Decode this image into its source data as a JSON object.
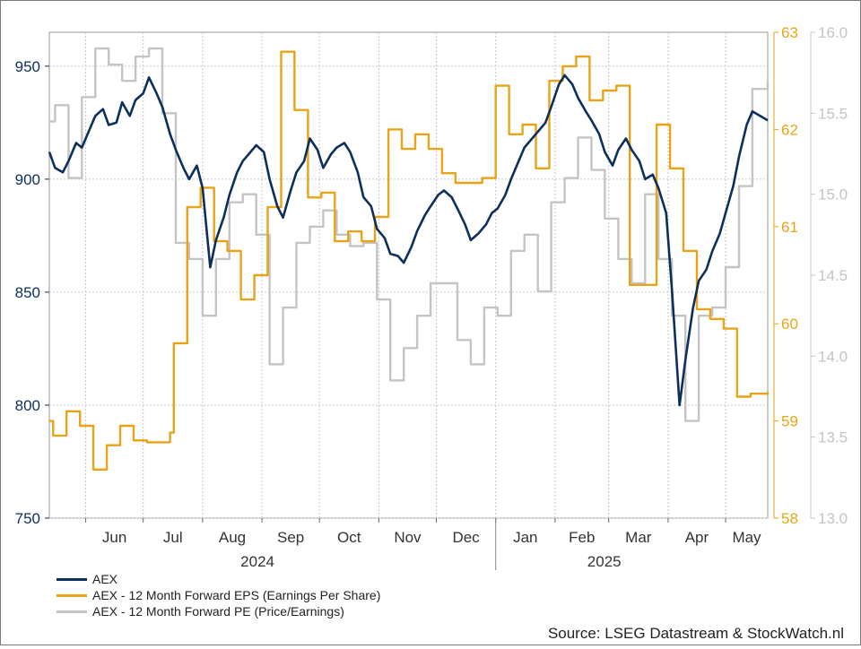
{
  "chart_data": {
    "type": "line",
    "title": "",
    "source": "Source: LSEG Datastream & StockWatch.nl",
    "x_range": [
      "2024-05-13",
      "2025-05-23"
    ],
    "month_ticks": [
      {
        "label": "Jun",
        "date": "2024-06-01"
      },
      {
        "label": "Jul",
        "date": "2024-07-01"
      },
      {
        "label": "Aug",
        "date": "2024-08-01"
      },
      {
        "label": "Sep",
        "date": "2024-09-01"
      },
      {
        "label": "Oct",
        "date": "2024-10-01"
      },
      {
        "label": "Nov",
        "date": "2024-11-01"
      },
      {
        "label": "Dec",
        "date": "2024-12-01"
      },
      {
        "label": "Jan",
        "date": "2025-01-01"
      },
      {
        "label": "Feb",
        "date": "2025-02-01"
      },
      {
        "label": "Mar",
        "date": "2025-03-01"
      },
      {
        "label": "Apr",
        "date": "2025-04-01"
      },
      {
        "label": "May",
        "date": "2025-05-01"
      }
    ],
    "year_labels": [
      {
        "label": "2024",
        "date": "2024-09-01"
      },
      {
        "label": "2025",
        "date": "2025-03-01"
      }
    ],
    "axes": {
      "left": {
        "min": 750,
        "max": 965,
        "ticks": [
          750,
          800,
          850,
          900,
          950
        ],
        "color": "#0d2f5c"
      },
      "right1": {
        "min": 58,
        "max": 63,
        "ticks": [
          58,
          59,
          60,
          61,
          62,
          63
        ],
        "color": "#e8a317"
      },
      "right2": {
        "min": 13.0,
        "max": 16.0,
        "ticks": [
          "13.0",
          "13.5",
          "14.0",
          "14.5",
          "15.0",
          "15.5",
          "16.0"
        ],
        "color": "#c4c4c4"
      }
    },
    "grid": true,
    "legend_position": "bottom-left",
    "series": [
      {
        "name": "AEX",
        "axis": "left",
        "color": "#0d2f5c",
        "points": [
          [
            "2024-05-13",
            912
          ],
          [
            "2024-05-16",
            905
          ],
          [
            "2024-05-20",
            903
          ],
          [
            "2024-05-23",
            908
          ],
          [
            "2024-05-27",
            916
          ],
          [
            "2024-05-30",
            914
          ],
          [
            "2024-06-03",
            922
          ],
          [
            "2024-06-06",
            928
          ],
          [
            "2024-06-10",
            931
          ],
          [
            "2024-06-13",
            924
          ],
          [
            "2024-06-17",
            925
          ],
          [
            "2024-06-20",
            934
          ],
          [
            "2024-06-24",
            928
          ],
          [
            "2024-06-27",
            935
          ],
          [
            "2024-07-01",
            938
          ],
          [
            "2024-07-04",
            945
          ],
          [
            "2024-07-08",
            938
          ],
          [
            "2024-07-11",
            932
          ],
          [
            "2024-07-15",
            920
          ],
          [
            "2024-07-18",
            913
          ],
          [
            "2024-07-22",
            905
          ],
          [
            "2024-07-25",
            900
          ],
          [
            "2024-07-29",
            906
          ],
          [
            "2024-08-01",
            896
          ],
          [
            "2024-08-05",
            861
          ],
          [
            "2024-08-08",
            873
          ],
          [
            "2024-08-12",
            883
          ],
          [
            "2024-08-15",
            893
          ],
          [
            "2024-08-19",
            903
          ],
          [
            "2024-08-22",
            908
          ],
          [
            "2024-08-26",
            912
          ],
          [
            "2024-08-29",
            915
          ],
          [
            "2024-09-02",
            912
          ],
          [
            "2024-09-05",
            900
          ],
          [
            "2024-09-09",
            888
          ],
          [
            "2024-09-12",
            883
          ],
          [
            "2024-09-16",
            895
          ],
          [
            "2024-09-19",
            903
          ],
          [
            "2024-09-23",
            908
          ],
          [
            "2024-09-26",
            918
          ],
          [
            "2024-09-30",
            913
          ],
          [
            "2024-10-03",
            905
          ],
          [
            "2024-10-07",
            911
          ],
          [
            "2024-10-10",
            914
          ],
          [
            "2024-10-14",
            916
          ],
          [
            "2024-10-17",
            912
          ],
          [
            "2024-10-21",
            903
          ],
          [
            "2024-10-24",
            892
          ],
          [
            "2024-10-28",
            888
          ],
          [
            "2024-10-31",
            878
          ],
          [
            "2024-11-04",
            874
          ],
          [
            "2024-11-07",
            867
          ],
          [
            "2024-11-11",
            866
          ],
          [
            "2024-11-14",
            863
          ],
          [
            "2024-11-18",
            870
          ],
          [
            "2024-11-21",
            877
          ],
          [
            "2024-11-25",
            884
          ],
          [
            "2024-11-28",
            888
          ],
          [
            "2024-12-02",
            893
          ],
          [
            "2024-12-05",
            895
          ],
          [
            "2024-12-09",
            892
          ],
          [
            "2024-12-12",
            887
          ],
          [
            "2024-12-16",
            880
          ],
          [
            "2024-12-19",
            873
          ],
          [
            "2024-12-23",
            876
          ],
          [
            "2024-12-27",
            880
          ],
          [
            "2024-12-30",
            885
          ],
          [
            "2025-01-02",
            887
          ],
          [
            "2025-01-06",
            893
          ],
          [
            "2025-01-09",
            900
          ],
          [
            "2025-01-13",
            908
          ],
          [
            "2025-01-16",
            914
          ],
          [
            "2025-01-20",
            918
          ],
          [
            "2025-01-23",
            921
          ],
          [
            "2025-01-27",
            925
          ],
          [
            "2025-01-30",
            932
          ],
          [
            "2025-02-03",
            942
          ],
          [
            "2025-02-06",
            946
          ],
          [
            "2025-02-10",
            942
          ],
          [
            "2025-02-13",
            936
          ],
          [
            "2025-02-17",
            930
          ],
          [
            "2025-02-20",
            926
          ],
          [
            "2025-02-24",
            920
          ],
          [
            "2025-02-27",
            912
          ],
          [
            "2025-03-03",
            906
          ],
          [
            "2025-03-06",
            913
          ],
          [
            "2025-03-10",
            918
          ],
          [
            "2025-03-13",
            913
          ],
          [
            "2025-03-17",
            908
          ],
          [
            "2025-03-20",
            900
          ],
          [
            "2025-03-24",
            902
          ],
          [
            "2025-03-27",
            896
          ],
          [
            "2025-03-31",
            885
          ],
          [
            "2025-04-03",
            851
          ],
          [
            "2025-04-07",
            800
          ],
          [
            "2025-04-10",
            820
          ],
          [
            "2025-04-14",
            843
          ],
          [
            "2025-04-17",
            855
          ],
          [
            "2025-04-21",
            860
          ],
          [
            "2025-04-24",
            868
          ],
          [
            "2025-04-28",
            876
          ],
          [
            "2025-05-01",
            885
          ],
          [
            "2025-05-05",
            897
          ],
          [
            "2025-05-08",
            910
          ],
          [
            "2025-05-12",
            924
          ],
          [
            "2025-05-15",
            930
          ],
          [
            "2025-05-19",
            928
          ],
          [
            "2025-05-23",
            926
          ]
        ]
      },
      {
        "name": "AEX - 12 Month Forward EPS (Earnings Per Share)",
        "axis": "right1",
        "color": "#e8a317",
        "points": [
          [
            "2024-05-13",
            59.0
          ],
          [
            "2024-05-15",
            58.85
          ],
          [
            "2024-05-22",
            59.1
          ],
          [
            "2024-05-29",
            58.95
          ],
          [
            "2024-06-05",
            58.5
          ],
          [
            "2024-06-12",
            58.75
          ],
          [
            "2024-06-19",
            58.95
          ],
          [
            "2024-06-26",
            58.8
          ],
          [
            "2024-07-03",
            58.78
          ],
          [
            "2024-07-15",
            58.88
          ],
          [
            "2024-07-17",
            59.8
          ],
          [
            "2024-07-24",
            61.2
          ],
          [
            "2024-07-31",
            61.4
          ],
          [
            "2024-08-07",
            60.85
          ],
          [
            "2024-08-14",
            60.75
          ],
          [
            "2024-08-21",
            60.25
          ],
          [
            "2024-08-28",
            60.5
          ],
          [
            "2024-09-04",
            61.2
          ],
          [
            "2024-09-11",
            62.8
          ],
          [
            "2024-09-18",
            62.2
          ],
          [
            "2024-09-25",
            61.3
          ],
          [
            "2024-10-02",
            61.35
          ],
          [
            "2024-10-09",
            60.85
          ],
          [
            "2024-10-16",
            60.95
          ],
          [
            "2024-10-23",
            60.85
          ],
          [
            "2024-10-30",
            61.1
          ],
          [
            "2024-11-06",
            62.0
          ],
          [
            "2024-11-13",
            61.8
          ],
          [
            "2024-11-20",
            61.95
          ],
          [
            "2024-11-27",
            61.8
          ],
          [
            "2024-12-04",
            61.55
          ],
          [
            "2024-12-11",
            61.45
          ],
          [
            "2024-12-18",
            61.45
          ],
          [
            "2024-12-25",
            61.5
          ],
          [
            "2025-01-01",
            62.45
          ],
          [
            "2025-01-08",
            61.95
          ],
          [
            "2025-01-15",
            62.05
          ],
          [
            "2025-01-22",
            61.6
          ],
          [
            "2025-01-29",
            62.5
          ],
          [
            "2025-02-05",
            62.65
          ],
          [
            "2025-02-12",
            62.75
          ],
          [
            "2025-02-19",
            62.3
          ],
          [
            "2025-02-26",
            62.4
          ],
          [
            "2025-03-05",
            62.45
          ],
          [
            "2025-03-12",
            60.4
          ],
          [
            "2025-03-19",
            60.4
          ],
          [
            "2025-03-26",
            62.05
          ],
          [
            "2025-04-02",
            61.6
          ],
          [
            "2025-04-09",
            60.75
          ],
          [
            "2025-04-16",
            60.15
          ],
          [
            "2025-04-23",
            60.05
          ],
          [
            "2025-04-30",
            59.95
          ],
          [
            "2025-05-07",
            59.25
          ],
          [
            "2025-05-14",
            59.28
          ],
          [
            "2025-05-23",
            59.3
          ]
        ]
      },
      {
        "name": "AEX - 12 Month Forward PE (Price/Earnings)",
        "axis": "right2",
        "color": "#c4c4c4",
        "points": [
          [
            "2024-05-13",
            15.45
          ],
          [
            "2024-05-16",
            15.55
          ],
          [
            "2024-05-23",
            15.1
          ],
          [
            "2024-05-30",
            15.6
          ],
          [
            "2024-06-06",
            15.9
          ],
          [
            "2024-06-13",
            15.8
          ],
          [
            "2024-06-20",
            15.7
          ],
          [
            "2024-06-27",
            15.85
          ],
          [
            "2024-07-04",
            15.9
          ],
          [
            "2024-07-11",
            15.5
          ],
          [
            "2024-07-18",
            14.7
          ],
          [
            "2024-07-25",
            14.6
          ],
          [
            "2024-08-01",
            14.25
          ],
          [
            "2024-08-08",
            14.6
          ],
          [
            "2024-08-15",
            14.95
          ],
          [
            "2024-08-22",
            15.0
          ],
          [
            "2024-08-29",
            14.75
          ],
          [
            "2024-09-05",
            13.95
          ],
          [
            "2024-09-12",
            14.3
          ],
          [
            "2024-09-19",
            14.7
          ],
          [
            "2024-09-26",
            14.8
          ],
          [
            "2024-10-03",
            14.9
          ],
          [
            "2024-10-10",
            14.75
          ],
          [
            "2024-10-17",
            14.68
          ],
          [
            "2024-10-24",
            14.7
          ],
          [
            "2024-10-31",
            14.35
          ],
          [
            "2024-11-07",
            13.85
          ],
          [
            "2024-11-14",
            14.05
          ],
          [
            "2024-11-21",
            14.25
          ],
          [
            "2024-11-28",
            14.45
          ],
          [
            "2024-12-05",
            14.45
          ],
          [
            "2024-12-12",
            14.1
          ],
          [
            "2024-12-19",
            13.95
          ],
          [
            "2024-12-26",
            14.3
          ],
          [
            "2025-01-02",
            14.25
          ],
          [
            "2025-01-09",
            14.65
          ],
          [
            "2025-01-16",
            14.75
          ],
          [
            "2025-01-23",
            14.4
          ],
          [
            "2025-01-30",
            14.95
          ],
          [
            "2025-02-06",
            15.1
          ],
          [
            "2025-02-13",
            15.35
          ],
          [
            "2025-02-20",
            15.15
          ],
          [
            "2025-02-27",
            14.85
          ],
          [
            "2025-03-06",
            14.6
          ],
          [
            "2025-03-13",
            14.45
          ],
          [
            "2025-03-20",
            15.0
          ],
          [
            "2025-03-27",
            14.6
          ],
          [
            "2025-04-03",
            14.25
          ],
          [
            "2025-04-10",
            13.6
          ],
          [
            "2025-04-17",
            14.25
          ],
          [
            "2025-04-24",
            14.3
          ],
          [
            "2025-05-01",
            14.55
          ],
          [
            "2025-05-08",
            15.05
          ],
          [
            "2025-05-15",
            15.65
          ],
          [
            "2025-05-23",
            15.7
          ]
        ]
      }
    ]
  }
}
